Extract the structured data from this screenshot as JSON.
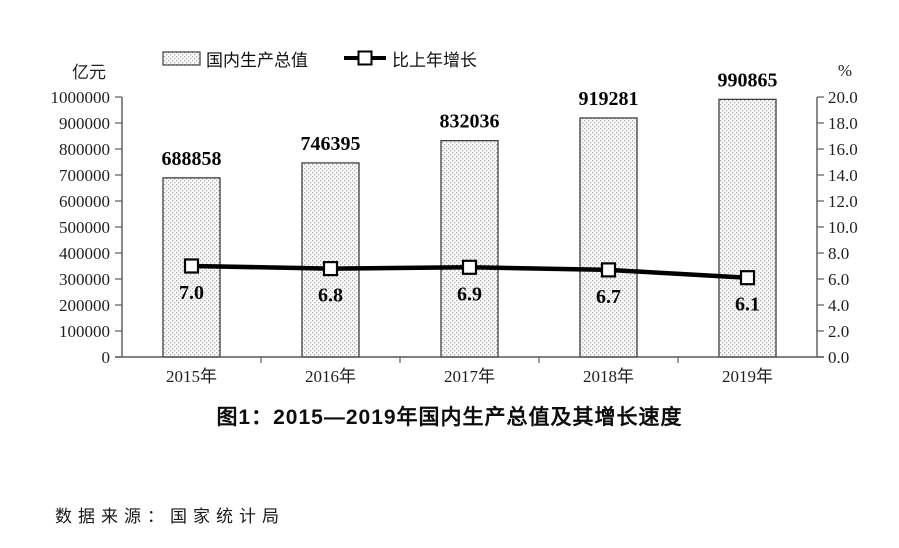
{
  "chart_data": {
    "type": "bar",
    "title": "图1：2015—2019年国内生产总值及其增长速度",
    "categories": [
      "2015年",
      "2016年",
      "2017年",
      "2018年",
      "2019年"
    ],
    "series": [
      {
        "name": "国内生产总值",
        "type": "bar",
        "axis": "left",
        "unit": "亿元",
        "values": [
          688858,
          746395,
          832036,
          919281,
          990865
        ],
        "labels": [
          "688858",
          "746395",
          "832036",
          "919281",
          "990865"
        ]
      },
      {
        "name": "比上年增长",
        "type": "line",
        "axis": "right",
        "unit": "%",
        "values": [
          7.0,
          6.8,
          6.9,
          6.7,
          6.1
        ],
        "labels": [
          "7.0",
          "6.8",
          "6.9",
          "6.7",
          "6.1"
        ]
      }
    ],
    "left_axis": {
      "unit_label": "亿元",
      "min": 0,
      "max": 1000000,
      "step": 100000,
      "tick_labels": [
        "0",
        "100000",
        "200000",
        "300000",
        "400000",
        "500000",
        "600000",
        "700000",
        "800000",
        "900000",
        "1000000"
      ]
    },
    "right_axis": {
      "unit_label": "%",
      "min": 0,
      "max": 20,
      "step": 2,
      "tick_labels": [
        "0.0",
        "2.0",
        "4.0",
        "6.0",
        "8.0",
        "10.0",
        "12.0",
        "14.0",
        "16.0",
        "18.0",
        "20.0"
      ]
    },
    "legend": [
      {
        "label": "国内生产总值",
        "swatch": "dotted-bar"
      },
      {
        "label": "比上年增长",
        "swatch": "line-square-marker"
      }
    ],
    "grid": false,
    "legend_position": "top"
  },
  "figure": {
    "caption": "图1：2015—2019年国内生产总值及其增长速度",
    "source_note": "数据来源：国家统计局"
  },
  "colors": {
    "bar_fill_bg": "#fcfcfc",
    "bar_fill_dot": "#ababab",
    "bar_border": "#3d3d3d",
    "line": "#000000",
    "marker_fill": "#ffffff",
    "marker_border": "#000000",
    "axis": "#595959",
    "text": "#1a1a1a"
  }
}
